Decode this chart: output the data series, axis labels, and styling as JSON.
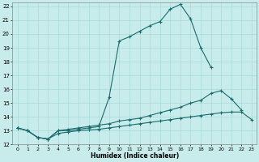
{
  "title": "",
  "xlabel": "Humidex (Indice chaleur)",
  "ylabel": "",
  "background_color": "#c8ecec",
  "line_color": "#1a6b6b",
  "grid_color": "#a8d8d8",
  "xlim": [
    -0.5,
    23.5
  ],
  "ylim": [
    12,
    22.3
  ],
  "xticks": [
    0,
    1,
    2,
    3,
    4,
    5,
    6,
    7,
    8,
    9,
    10,
    11,
    12,
    13,
    14,
    15,
    16,
    17,
    18,
    19,
    20,
    21,
    22,
    23
  ],
  "yticks": [
    12,
    13,
    14,
    15,
    16,
    17,
    18,
    19,
    20,
    21,
    22
  ],
  "curve1_x": [
    0,
    1,
    2,
    3,
    4,
    5,
    6,
    7,
    8,
    9,
    10,
    11,
    12,
    13,
    14,
    15,
    16,
    17,
    18,
    19
  ],
  "curve1_y": [
    13.2,
    13.0,
    12.5,
    12.4,
    13.0,
    13.0,
    13.1,
    13.2,
    13.3,
    15.4,
    19.5,
    19.8,
    20.2,
    20.6,
    20.9,
    21.8,
    22.15,
    21.1,
    19.0,
    17.6
  ],
  "curve2_x": [
    0,
    1,
    2,
    3,
    4,
    5,
    6,
    7,
    8,
    9,
    10,
    11,
    12,
    13,
    14,
    15,
    16,
    17,
    18,
    19,
    20,
    21,
    22
  ],
  "curve2_y": [
    13.2,
    13.0,
    12.5,
    12.4,
    13.0,
    13.1,
    13.2,
    13.3,
    13.4,
    13.5,
    13.7,
    13.8,
    13.9,
    14.1,
    14.3,
    14.5,
    14.7,
    15.0,
    15.2,
    15.7,
    15.9,
    15.3,
    14.5
  ],
  "curve3_x": [
    0,
    1,
    2,
    3,
    4,
    5,
    6,
    7,
    8,
    9,
    10,
    11,
    12,
    13,
    14,
    15,
    16,
    17,
    18,
    19,
    20,
    21,
    22,
    23
  ],
  "curve3_y": [
    13.2,
    13.0,
    12.5,
    12.4,
    12.8,
    12.9,
    13.0,
    13.05,
    13.1,
    13.2,
    13.3,
    13.4,
    13.5,
    13.6,
    13.7,
    13.8,
    13.9,
    14.0,
    14.1,
    14.2,
    14.3,
    14.35,
    14.35,
    13.8
  ]
}
